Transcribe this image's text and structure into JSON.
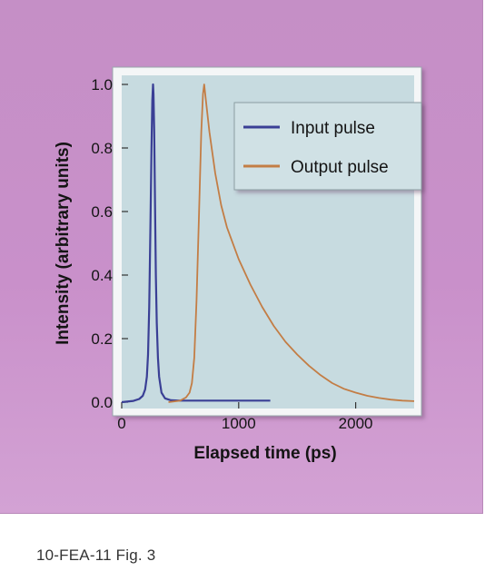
{
  "caption": "10-FEA-11  Fig. 3",
  "colors": {
    "panel_background": "#c990ca",
    "plot_background": "#c7dbe0",
    "input_pulse": "#3a3f95",
    "output_pulse": "#c37d45"
  },
  "chart_data": {
    "type": "line",
    "title": "",
    "xlabel": "Elapsed time (ps)",
    "ylabel": "Intensity (arbitrary units)",
    "xlim": [
      0,
      2500
    ],
    "ylim": [
      0,
      1.05
    ],
    "xticks": [
      0,
      1000,
      2000
    ],
    "xtick_labels": [
      "0",
      "1000",
      "2000"
    ],
    "yticks": [
      0,
      0.2,
      0.4,
      0.6,
      0.8,
      1.0
    ],
    "ytick_labels": [
      "0.0",
      "0.2",
      "0.4",
      "0.6",
      "0.8",
      "1.0"
    ],
    "grid": false,
    "legend_position": "top-right",
    "series": [
      {
        "name": "Input pulse",
        "color": "#3a3f95",
        "x": [
          0,
          100,
          150,
          180,
          200,
          215,
          225,
          235,
          245,
          255,
          262,
          268,
          272,
          278,
          285,
          292,
          300,
          310,
          320,
          340,
          370,
          420,
          500,
          700,
          1000,
          1250,
          1270
        ],
        "y": [
          0.0,
          0.004,
          0.01,
          0.02,
          0.04,
          0.08,
          0.15,
          0.3,
          0.55,
          0.8,
          0.95,
          1.0,
          0.97,
          0.85,
          0.62,
          0.4,
          0.25,
          0.14,
          0.08,
          0.03,
          0.012,
          0.006,
          0.005,
          0.005,
          0.005,
          0.005,
          0.005
        ]
      },
      {
        "name": "Output pulse",
        "color": "#c37d45",
        "x": [
          400,
          500,
          550,
          580,
          600,
          620,
          640,
          660,
          680,
          695,
          705,
          720,
          750,
          800,
          850,
          900,
          1000,
          1100,
          1200,
          1300,
          1400,
          1500,
          1600,
          1700,
          1800,
          1900,
          2000,
          2100,
          2200,
          2300,
          2400,
          2500
        ],
        "y": [
          0.0,
          0.005,
          0.015,
          0.03,
          0.06,
          0.14,
          0.32,
          0.58,
          0.85,
          0.97,
          1.0,
          0.95,
          0.85,
          0.72,
          0.62,
          0.55,
          0.45,
          0.37,
          0.3,
          0.24,
          0.19,
          0.15,
          0.115,
          0.085,
          0.06,
          0.042,
          0.03,
          0.02,
          0.013,
          0.008,
          0.005,
          0.003
        ]
      }
    ]
  }
}
